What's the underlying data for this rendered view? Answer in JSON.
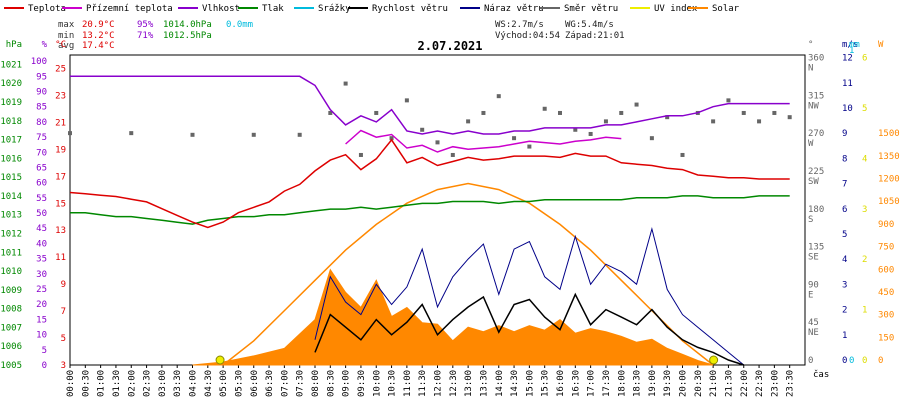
{
  "legend": [
    {
      "label": "Teplota",
      "color": "#dd0000"
    },
    {
      "label": "Přízemní teplota",
      "color": "#cc00cc"
    },
    {
      "label": "Vlhkost",
      "color": "#8800cc"
    },
    {
      "label": "Tlak",
      "color": "#008800"
    },
    {
      "label": "Srážky",
      "color": "#00bbdd"
    },
    {
      "label": "Rychlost větru",
      "color": "#000000"
    },
    {
      "label": "Náraz větru",
      "color": "#000088"
    },
    {
      "label": "Směr větru",
      "color": "#666666"
    },
    {
      "label": "UV index",
      "color": "#eeee00"
    },
    {
      "label": "Solar",
      "color": "#ff8800"
    }
  ],
  "stats": {
    "max_label": "max",
    "max_temp": "20.9°C",
    "max_hum": "95%",
    "max_press": "1014.0hPa",
    "max_rain": "0.0mm",
    "min_label": "min",
    "min_temp": "13.2°C",
    "min_hum": "71%",
    "min_press": "1012.5hPa",
    "avg_label": "avg",
    "avg_temp": "17.4°C",
    "ws": "WS:2.7m/s",
    "wg": "WG:5.4m/s",
    "sunrise": "Východ:04:54",
    "sunset": "Západ:21:01"
  },
  "chart_data": {
    "type": "line",
    "title": "2.07.2021",
    "x_axis_label": "čas",
    "x_ticks": [
      "00:00",
      "00:30",
      "01:00",
      "01:30",
      "02:00",
      "02:30",
      "03:00",
      "03:30",
      "04:00",
      "04:30",
      "05:00",
      "05:30",
      "06:00",
      "06:30",
      "07:00",
      "07:30",
      "08:00",
      "08:30",
      "09:00",
      "09:30",
      "10:00",
      "10:30",
      "11:00",
      "11:30",
      "12:00",
      "12:30",
      "13:00",
      "13:30",
      "14:00",
      "14:30",
      "15:00",
      "15:30",
      "16:00",
      "16:30",
      "17:00",
      "17:30",
      "18:00",
      "18:30",
      "19:00",
      "19:30",
      "20:00",
      "20:30",
      "21:00",
      "21:30",
      "22:00",
      "22:30",
      "23:00",
      "23:30"
    ],
    "left_axes": [
      {
        "unit": "hPa",
        "color": "#008800",
        "ticks": [
          "1005",
          "1006",
          "1007",
          "1008",
          "1009",
          "1010",
          "1011",
          "1012",
          "1013",
          "1014",
          "1015",
          "1016",
          "1017",
          "1018",
          "1019",
          "1020",
          "1021"
        ]
      },
      {
        "unit": "%",
        "color": "#8800cc",
        "ticks": [
          "0",
          "5",
          "10",
          "15",
          "20",
          "25",
          "30",
          "35",
          "40",
          "45",
          "50",
          "55",
          "60",
          "65",
          "70",
          "75",
          "80",
          "85",
          "90",
          "95",
          "100"
        ]
      },
      {
        "unit": "°C",
        "color": "#dd0000",
        "ticks": [
          "3",
          "5",
          "7",
          "9",
          "11",
          "13",
          "15",
          "17",
          "19",
          "21",
          "23",
          "25"
        ]
      }
    ],
    "right_axes": [
      {
        "unit": "°",
        "color": "#666666",
        "ticks": [
          "0",
          "45",
          "90",
          "135",
          "180",
          "225",
          "270",
          "315",
          "360"
        ],
        "directions": [
          "",
          "NE",
          "E",
          "SE",
          "S",
          "SW",
          "W",
          "NW",
          "N"
        ]
      },
      {
        "unit": "m/s",
        "color": "#000088",
        "ticks": [
          "0",
          "1",
          "2",
          "3",
          "4",
          "5",
          "6",
          "7",
          "8",
          "9",
          "10",
          "11",
          "12"
        ]
      },
      {
        "unit": "mm",
        "color": "#00bbdd",
        "ticks": [
          "0",
          "1"
        ]
      },
      {
        "unit": "",
        "color": "#dddd00",
        "ticks": [
          "0",
          "1",
          "2",
          "3",
          "4",
          "5",
          "6"
        ]
      },
      {
        "unit": "W",
        "color": "#ff8800",
        "ticks": [
          "0",
          "150",
          "300",
          "450",
          "600",
          "750",
          "900",
          "1050",
          "1200",
          "1350",
          "1500"
        ]
      }
    ],
    "series": [
      {
        "name": "Teplota",
        "unit": "°C",
        "x": [
          0,
          0.5,
          1,
          1.5,
          2,
          2.5,
          3,
          3.5,
          4,
          4.5,
          5,
          5.5,
          6,
          6.5,
          7,
          7.5,
          8,
          8.5,
          9,
          9.5,
          10,
          10.5,
          11,
          11.5,
          12,
          12.5,
          13,
          13.5,
          14,
          14.5,
          15,
          15.5,
          16,
          16.5,
          17,
          17.5,
          18,
          18.5,
          19,
          19.5,
          20,
          20.5,
          21,
          21.5,
          22,
          22.5,
          23,
          23.5
        ],
        "y": [
          15.8,
          15.7,
          15.6,
          15.5,
          15.3,
          15.1,
          14.6,
          14.1,
          13.6,
          13.2,
          13.6,
          14.3,
          14.7,
          15.1,
          15.9,
          16.4,
          17.4,
          18.2,
          18.6,
          17.5,
          18.3,
          19.7,
          18.0,
          18.4,
          17.8,
          18.1,
          18.4,
          18.2,
          18.3,
          18.5,
          18.5,
          18.5,
          18.4,
          18.7,
          18.5,
          18.5,
          18.0,
          17.9,
          17.8,
          17.6,
          17.5,
          17.1,
          17.0,
          16.9,
          16.9,
          16.8,
          16.8,
          16.8
        ]
      },
      {
        "name": "Přízemní teplota",
        "unit": "°C",
        "x": [
          9,
          9.5,
          10,
          10.5,
          11,
          11.5,
          12,
          12.5,
          13,
          13.5,
          14,
          14.5,
          15,
          15.5,
          16,
          16.5,
          17,
          17.5,
          18
        ],
        "y": [
          19.4,
          20.4,
          19.9,
          20.1,
          19.1,
          19.3,
          18.8,
          19.2,
          19.0,
          19.1,
          19.2,
          19.4,
          19.6,
          19.5,
          19.4,
          19.6,
          19.7,
          19.9,
          19.8
        ]
      },
      {
        "name": "Vlhkost",
        "unit": "%",
        "x": [
          0,
          0.5,
          1,
          1.5,
          2,
          2.5,
          3,
          3.5,
          4,
          4.5,
          5,
          5.5,
          6,
          6.5,
          7,
          7.5,
          8,
          8.5,
          9,
          9.5,
          10,
          10.5,
          11,
          11.5,
          12,
          12.5,
          13,
          13.5,
          14,
          14.5,
          15,
          15.5,
          16,
          16.5,
          17,
          17.5,
          18,
          18.5,
          19,
          19.5,
          20,
          20.5,
          21,
          21.5,
          22,
          22.5,
          23,
          23.5
        ],
        "y": [
          95,
          95,
          95,
          95,
          95,
          95,
          95,
          95,
          95,
          95,
          95,
          95,
          95,
          95,
          95,
          95,
          92,
          84,
          79,
          82,
          80,
          84,
          77,
          76,
          77,
          76,
          77,
          76,
          76,
          77,
          77,
          78,
          78,
          78,
          78,
          79,
          79,
          80,
          81,
          82,
          82,
          83,
          85,
          86,
          86,
          86,
          86,
          86
        ]
      },
      {
        "name": "Tlak",
        "unit": "hPa",
        "x": [
          0,
          0.5,
          1,
          1.5,
          2,
          2.5,
          3,
          3.5,
          4,
          4.5,
          5,
          5.5,
          6,
          6.5,
          7,
          7.5,
          8,
          8.5,
          9,
          9.5,
          10,
          10.5,
          11,
          11.5,
          12,
          12.5,
          13,
          13.5,
          14,
          14.5,
          15,
          15.5,
          16,
          16.5,
          17,
          17.5,
          18,
          18.5,
          19,
          19.5,
          20,
          20.5,
          21,
          21.5,
          22,
          22.5,
          23,
          23.5
        ],
        "y": [
          1013.1,
          1013.1,
          1013.0,
          1012.9,
          1012.9,
          1012.8,
          1012.7,
          1012.6,
          1012.5,
          1012.7,
          1012.8,
          1012.9,
          1012.9,
          1013.0,
          1013.0,
          1013.1,
          1013.2,
          1013.3,
          1013.3,
          1013.4,
          1013.3,
          1013.4,
          1013.5,
          1013.6,
          1013.6,
          1013.7,
          1013.7,
          1013.7,
          1013.6,
          1013.7,
          1013.7,
          1013.8,
          1013.8,
          1013.8,
          1013.8,
          1013.8,
          1013.8,
          1013.9,
          1013.9,
          1013.9,
          1014.0,
          1014.0,
          1013.9,
          1013.9,
          1013.9,
          1014.0,
          1014.0,
          1014.0
        ]
      },
      {
        "name": "Rychlost větru",
        "unit": "m/s",
        "x": [
          8,
          8.5,
          9,
          9.5,
          10,
          10.5,
          11,
          11.5,
          12,
          12.5,
          13,
          13.5,
          14,
          14.5,
          15,
          15.5,
          16,
          16.5,
          17,
          17.5,
          18,
          18.5,
          19,
          19.5,
          20,
          20.5,
          21,
          21.5,
          22
        ],
        "y": [
          0.5,
          2,
          1.5,
          1,
          1.8,
          1.2,
          1.7,
          2.4,
          1.2,
          1.8,
          2.3,
          2.7,
          1.3,
          2.4,
          2.6,
          1.9,
          1.4,
          2.8,
          1.6,
          2.2,
          1.9,
          1.6,
          2.2,
          1.5,
          1.0,
          0.7,
          0.5,
          0.2,
          0
        ]
      },
      {
        "name": "Náraz větru",
        "unit": "m/s",
        "x": [
          8,
          8.5,
          9,
          9.5,
          10,
          10.5,
          11,
          11.5,
          12,
          12.5,
          13,
          13.5,
          14,
          14.5,
          15,
          15.5,
          16,
          16.5,
          17,
          17.5,
          18,
          18.5,
          19,
          19.5,
          20,
          20.5,
          21,
          21.5,
          22
        ],
        "y": [
          1,
          3.5,
          2.5,
          2,
          3.2,
          2.4,
          3.1,
          4.6,
          2.3,
          3.5,
          4.2,
          4.8,
          2.8,
          4.6,
          4.9,
          3.5,
          3.0,
          5.1,
          3.2,
          4.0,
          3.7,
          3.2,
          5.4,
          3.0,
          2.0,
          1.5,
          1.0,
          0.5,
          0
        ]
      },
      {
        "name": "Směr větru",
        "unit": "°",
        "x": [
          0,
          2,
          4,
          6,
          7.5,
          8.5,
          9,
          9.5,
          10,
          10.5,
          11,
          11.5,
          12,
          12.5,
          13,
          13.5,
          14,
          14.5,
          15,
          15.5,
          16,
          16.5,
          17,
          17.5,
          18,
          18.5,
          19,
          19.5,
          20,
          20.5,
          21,
          21.5,
          22,
          22.5,
          23,
          23.5
        ],
        "y": [
          276,
          276,
          274,
          274,
          274,
          300,
          335,
          250,
          300,
          270,
          315,
          280,
          265,
          250,
          290,
          300,
          320,
          270,
          260,
          305,
          300,
          280,
          275,
          290,
          300,
          310,
          270,
          295,
          250,
          300,
          290,
          315,
          300,
          290,
          300,
          295
        ]
      },
      {
        "name": "Solar",
        "unit": "W",
        "x": [
          4,
          5,
          6,
          7,
          8,
          8.5,
          9,
          9.5,
          10,
          10.5,
          11,
          11.5,
          12,
          12.5,
          13,
          13.5,
          14,
          14.5,
          15,
          15.5,
          16,
          16.5,
          17,
          17.5,
          18,
          18.5,
          19,
          19.5,
          20,
          20.5,
          21
        ],
        "y": [
          0,
          20,
          60,
          110,
          300,
          630,
          480,
          380,
          560,
          320,
          380,
          280,
          270,
          160,
          250,
          220,
          260,
          220,
          260,
          230,
          300,
          210,
          240,
          220,
          190,
          150,
          170,
          110,
          70,
          30,
          0
        ]
      },
      {
        "name": "Solar (teoretický)",
        "unit": "W",
        "x": [
          5,
          6,
          7,
          8,
          9,
          10,
          11,
          12,
          13,
          14,
          15,
          16,
          17,
          18,
          19,
          20,
          21
        ],
        "y": [
          0,
          160,
          360,
          560,
          760,
          930,
          1070,
          1160,
          1200,
          1160,
          1070,
          930,
          760,
          560,
          360,
          160,
          0
        ]
      }
    ],
    "markers": [
      {
        "label": "Východ",
        "time": "04:54"
      },
      {
        "label": "Západ",
        "time": "21:01"
      }
    ]
  }
}
